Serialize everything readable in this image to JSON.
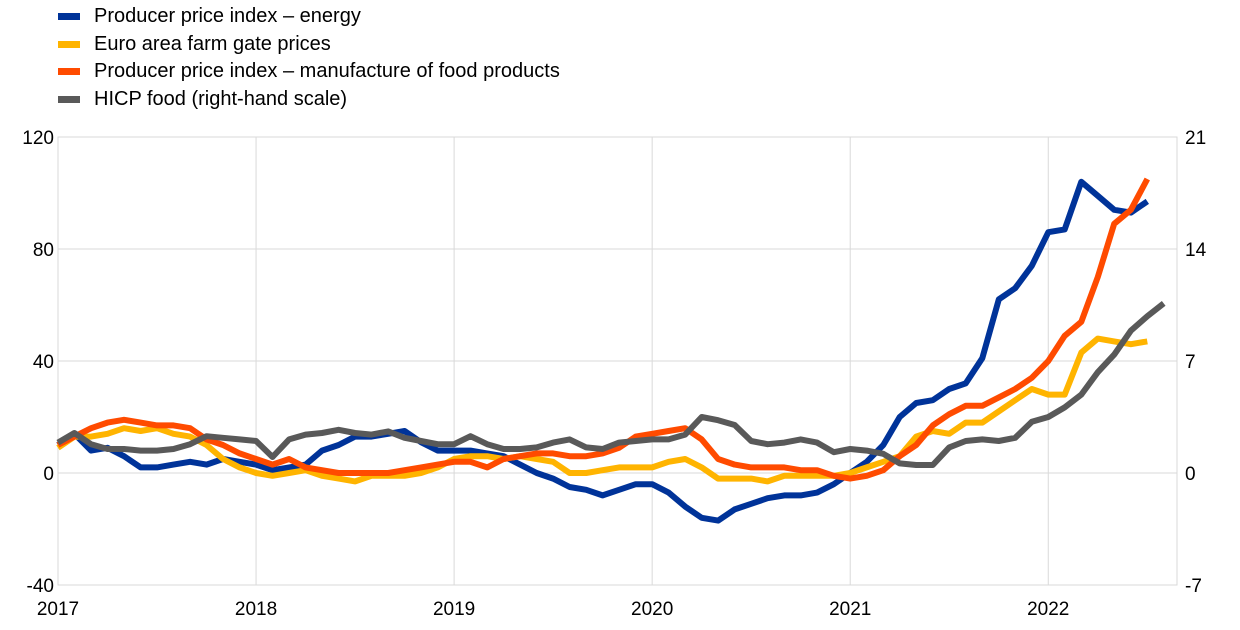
{
  "chart_data": {
    "type": "line",
    "title": "",
    "xlabel": "",
    "ylabel": "",
    "x_tick_labels": [
      "2017",
      "2018",
      "2019",
      "2020",
      "2021",
      "2022"
    ],
    "x_range": [
      2017.0,
      2022.65
    ],
    "left_axis": {
      "ylim": [
        -40,
        120
      ],
      "ticks": [
        "-40",
        "0",
        "40",
        "80",
        "120"
      ]
    },
    "right_axis": {
      "ylim": [
        -7,
        21
      ],
      "ticks": [
        "-7",
        "0",
        "7",
        "14",
        "21"
      ]
    },
    "grid": "vertical",
    "legend_placement": "top-left",
    "series": [
      {
        "name": "Producer price index – energy",
        "color": "#003399",
        "axis": "left",
        "x": [
          2017.0,
          2017.083,
          2017.167,
          2017.25,
          2017.333,
          2017.417,
          2017.5,
          2017.583,
          2017.667,
          2017.75,
          2017.833,
          2017.917,
          2018.0,
          2018.083,
          2018.167,
          2018.25,
          2018.333,
          2018.417,
          2018.5,
          2018.583,
          2018.667,
          2018.75,
          2018.833,
          2018.917,
          2019.0,
          2019.083,
          2019.167,
          2019.25,
          2019.333,
          2019.417,
          2019.5,
          2019.583,
          2019.667,
          2019.75,
          2019.833,
          2019.917,
          2020.0,
          2020.083,
          2020.167,
          2020.25,
          2020.333,
          2020.417,
          2020.5,
          2020.583,
          2020.667,
          2020.75,
          2020.833,
          2020.917,
          2021.0,
          2021.083,
          2021.167,
          2021.25,
          2021.333,
          2021.417,
          2021.5,
          2021.583,
          2021.667,
          2021.75,
          2021.833,
          2021.917,
          2022.0,
          2022.083,
          2022.167,
          2022.25,
          2022.333,
          2022.417,
          2022.5
        ],
        "values": [
          10,
          14,
          8,
          9,
          6,
          2,
          2,
          3,
          4,
          3,
          5,
          4,
          3,
          1,
          2,
          3,
          8,
          10,
          13,
          13,
          14,
          15,
          11,
          8,
          8,
          8,
          7,
          6,
          3,
          0,
          -2,
          -5,
          -6,
          -8,
          -6,
          -4,
          -4,
          -7,
          -12,
          -16,
          -17,
          -13,
          -11,
          -9,
          -8,
          -8,
          -7,
          -4,
          0,
          4,
          10,
          20,
          25,
          26,
          30,
          32,
          41,
          62,
          66,
          74,
          86,
          87,
          104,
          99,
          94,
          93,
          97
        ]
      },
      {
        "name": "Euro area farm gate prices",
        "color": "#ffb400",
        "axis": "left",
        "x": [
          2017.0,
          2017.083,
          2017.167,
          2017.25,
          2017.333,
          2017.417,
          2017.5,
          2017.583,
          2017.667,
          2017.75,
          2017.833,
          2017.917,
          2018.0,
          2018.083,
          2018.167,
          2018.25,
          2018.333,
          2018.417,
          2018.5,
          2018.583,
          2018.667,
          2018.75,
          2018.833,
          2018.917,
          2019.0,
          2019.083,
          2019.167,
          2019.25,
          2019.333,
          2019.417,
          2019.5,
          2019.583,
          2019.667,
          2019.75,
          2019.833,
          2019.917,
          2020.0,
          2020.083,
          2020.167,
          2020.25,
          2020.333,
          2020.417,
          2020.5,
          2020.583,
          2020.667,
          2020.75,
          2020.833,
          2020.917,
          2021.0,
          2021.083,
          2021.167,
          2021.25,
          2021.333,
          2021.417,
          2021.5,
          2021.583,
          2021.667,
          2021.75,
          2021.833,
          2021.917,
          2022.0,
          2022.083,
          2022.167,
          2022.25,
          2022.333,
          2022.417,
          2022.5
        ],
        "values": [
          9,
          13,
          13,
          14,
          16,
          15,
          16,
          14,
          13,
          10,
          5,
          2,
          0,
          -1,
          0,
          1,
          -1,
          -2,
          -3,
          -1,
          -1,
          -1,
          0,
          2,
          5,
          6,
          6,
          5,
          6,
          5,
          4,
          0,
          0,
          1,
          2,
          2,
          2,
          4,
          5,
          2,
          -2,
          -2,
          -2,
          -3,
          -1,
          -1,
          -1,
          -1,
          0,
          2,
          4,
          6,
          13,
          15,
          14,
          18,
          18,
          22,
          26,
          30,
          28,
          28,
          43,
          48,
          47,
          46,
          47
        ]
      },
      {
        "name": "Producer price index – manufacture of food products",
        "color": "#ff4b00",
        "axis": "left",
        "x": [
          2017.0,
          2017.083,
          2017.167,
          2017.25,
          2017.333,
          2017.417,
          2017.5,
          2017.583,
          2017.667,
          2017.75,
          2017.833,
          2017.917,
          2018.0,
          2018.083,
          2018.167,
          2018.25,
          2018.333,
          2018.417,
          2018.5,
          2018.583,
          2018.667,
          2018.75,
          2018.833,
          2018.917,
          2019.0,
          2019.083,
          2019.167,
          2019.25,
          2019.333,
          2019.417,
          2019.5,
          2019.583,
          2019.667,
          2019.75,
          2019.833,
          2019.917,
          2020.0,
          2020.083,
          2020.167,
          2020.25,
          2020.333,
          2020.417,
          2020.5,
          2020.583,
          2020.667,
          2020.75,
          2020.833,
          2020.917,
          2021.0,
          2021.083,
          2021.167,
          2021.25,
          2021.333,
          2021.417,
          2021.5,
          2021.583,
          2021.667,
          2021.75,
          2021.833,
          2021.917,
          2022.0,
          2022.083,
          2022.167,
          2022.25,
          2022.333,
          2022.417,
          2022.5
        ],
        "values": [
          10,
          13,
          16,
          18,
          19,
          18,
          17,
          17,
          16,
          12,
          10,
          7,
          5,
          3,
          5,
          2,
          1,
          0,
          0,
          0,
          0,
          1,
          2,
          3,
          4,
          4,
          2,
          5,
          6,
          7,
          7,
          6,
          6,
          7,
          9,
          13,
          14,
          15,
          16,
          12,
          5,
          3,
          2,
          2,
          2,
          1,
          1,
          -1,
          -2,
          -1,
          1,
          6,
          10,
          17,
          21,
          24,
          24,
          27,
          30,
          34,
          40,
          49,
          54,
          70,
          89,
          94,
          105
        ]
      },
      {
        "name": "HICP food (right-hand scale)",
        "color": "#595959",
        "axis": "right",
        "x": [
          2017.0,
          2017.083,
          2017.167,
          2017.25,
          2017.333,
          2017.417,
          2017.5,
          2017.583,
          2017.667,
          2017.75,
          2017.833,
          2017.917,
          2018.0,
          2018.083,
          2018.167,
          2018.25,
          2018.333,
          2018.417,
          2018.5,
          2018.583,
          2018.667,
          2018.75,
          2018.833,
          2018.917,
          2019.0,
          2019.083,
          2019.167,
          2019.25,
          2019.333,
          2019.417,
          2019.5,
          2019.583,
          2019.667,
          2019.75,
          2019.833,
          2019.917,
          2020.0,
          2020.083,
          2020.167,
          2020.25,
          2020.333,
          2020.417,
          2020.5,
          2020.583,
          2020.667,
          2020.75,
          2020.833,
          2020.917,
          2021.0,
          2021.083,
          2021.167,
          2021.25,
          2021.333,
          2021.417,
          2021.5,
          2021.583,
          2021.667,
          2021.75,
          2021.833,
          2021.917,
          2022.0,
          2022.083,
          2022.167,
          2022.25,
          2022.333,
          2022.417,
          2022.5,
          2022.583
        ],
        "values": [
          1.9,
          2.5,
          1.8,
          1.5,
          1.5,
          1.4,
          1.4,
          1.5,
          1.8,
          2.3,
          2.2,
          2.1,
          2.0,
          1.0,
          2.1,
          2.4,
          2.5,
          2.7,
          2.5,
          2.4,
          2.6,
          2.2,
          2.0,
          1.8,
          1.8,
          2.3,
          1.8,
          1.5,
          1.5,
          1.6,
          1.9,
          2.1,
          1.6,
          1.5,
          1.9,
          2.0,
          2.1,
          2.1,
          2.4,
          3.5,
          3.3,
          3.0,
          2.0,
          1.8,
          1.9,
          2.1,
          1.9,
          1.3,
          1.5,
          1.4,
          1.2,
          0.6,
          0.5,
          0.5,
          1.6,
          2.0,
          2.1,
          2.0,
          2.2,
          3.2,
          3.5,
          4.1,
          4.9,
          6.3,
          7.4,
          8.9,
          9.8,
          10.6
        ]
      }
    ]
  }
}
